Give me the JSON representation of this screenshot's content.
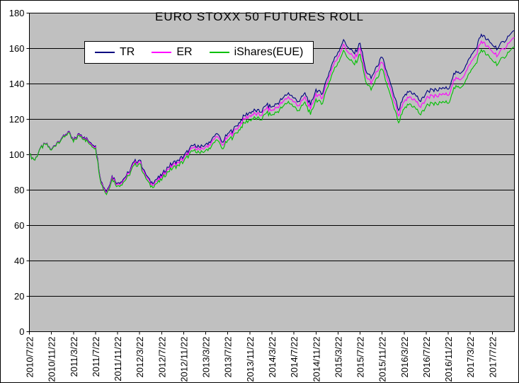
{
  "chart_data": {
    "type": "line",
    "title": "EURO STOXX 50 FUTURES ROLL",
    "plot_bg": "#C0C0C0",
    "grid": "horizontal",
    "legend_position": "top-left-inside",
    "noise_amplitude": 1.3,
    "y_axis": {
      "min": 0,
      "max": 180,
      "step": 20,
      "tick_labels": [
        "0",
        "20",
        "40",
        "60",
        "80",
        "100",
        "120",
        "140",
        "160",
        "180"
      ]
    },
    "x_axis": {
      "tick_every": 4,
      "tick_labels": [
        "2010/7/22",
        "2010/11/22",
        "2011/3/22",
        "2011/7/22",
        "2011/11/22",
        "2012/3/22",
        "2012/7/22",
        "2012/11/22",
        "2013/3/22",
        "2013/7/22",
        "2013/11/22",
        "2014/3/22",
        "2014/7/22",
        "2014/11/22",
        "2015/3/22",
        "2015/7/22",
        "2015/11/22",
        "2016/3/22",
        "2016/7/22",
        "2016/11/22",
        "2017/3/22",
        "2017/7/22"
      ]
    },
    "series": [
      {
        "name": "TR",
        "color": "#000080",
        "values": [
          100,
          97,
          104,
          106,
          103,
          107,
          110,
          113,
          108,
          112,
          110,
          107,
          105,
          85,
          79,
          88,
          84,
          86,
          90,
          96,
          97,
          90,
          84,
          86,
          88,
          93,
          95,
          97,
          99,
          103,
          106,
          104,
          106,
          108,
          112,
          107,
          112,
          114,
          118,
          122,
          124,
          125,
          124,
          128,
          127,
          129,
          132,
          135,
          132,
          130,
          135,
          128,
          137,
          134,
          143,
          152,
          158,
          165,
          160,
          157,
          163,
          148,
          143,
          150,
          155,
          145,
          135,
          125,
          133,
          136,
          134,
          130,
          135,
          137,
          136,
          138,
          137,
          146,
          146,
          149,
          155,
          160,
          168,
          165,
          162,
          160,
          164,
          167,
          170
        ]
      },
      {
        "name": "ER",
        "color": "#FF00FF",
        "values": [
          100,
          97,
          103.9,
          105.9,
          102.8,
          106.8,
          109.7,
          112.7,
          107.6,
          111.6,
          109.5,
          106.5,
          104.4,
          84.4,
          78.4,
          87.3,
          83.3,
          85.2,
          89.2,
          95.1,
          96.1,
          89,
          83,
          84.9,
          86.9,
          91.9,
          93.8,
          95.8,
          97.7,
          101.7,
          104.6,
          102.6,
          104.5,
          106.5,
          110.4,
          105.4,
          110.3,
          112.3,
          116.3,
          120.2,
          122.2,
          123.1,
          122.1,
          126,
          125,
          126.9,
          129.9,
          132.8,
          129.8,
          127.7,
          132.7,
          125.7,
          134.6,
          131.6,
          140.5,
          149.5,
          155.4,
          162.4,
          157.3,
          154.3,
          160.2,
          145.2,
          140.1,
          147.1,
          152.1,
          142,
          132,
          121.9,
          129.9,
          132.8,
          130.8,
          126.7,
          131.7,
          133.6,
          132.6,
          134.6,
          133.5,
          142.5,
          142.4,
          145.4,
          151.3,
          156.3,
          164.2,
          161.2,
          158.1,
          156.1,
          160,
          163,
          166
        ]
      },
      {
        "name": "iShares(EUE)",
        "color": "#00C000",
        "values": [
          100,
          96.9,
          103.8,
          105.7,
          102.6,
          106.5,
          109.4,
          112.3,
          107.2,
          111.1,
          109,
          105.8,
          103.7,
          83.6,
          77.5,
          86.4,
          82.3,
          84.2,
          88.1,
          94,
          94.9,
          87.8,
          81.7,
          83.6,
          85.5,
          90.4,
          92.3,
          94.2,
          96.1,
          100,
          102.9,
          100.7,
          102.6,
          104.5,
          108.4,
          103.3,
          108.2,
          110.1,
          114,
          117.9,
          119.8,
          120.7,
          119.6,
          123.5,
          122.4,
          124.3,
          127.2,
          130.1,
          127,
          124.9,
          129.8,
          122.6,
          131.5,
          128.4,
          137.3,
          146.2,
          152.1,
          159,
          153.9,
          150.8,
          156.7,
          141.6,
          136.5,
          143.4,
          148.3,
          138.2,
          128.1,
          118,
          125.9,
          128.8,
          126.6,
          122.5,
          127.4,
          129.3,
          128.2,
          130.1,
          129,
          137.9,
          137.8,
          140.7,
          146.6,
          151.5,
          159.4,
          156.3,
          153.2,
          151.1,
          155,
          157.9,
          160.8
        ]
      }
    ]
  }
}
